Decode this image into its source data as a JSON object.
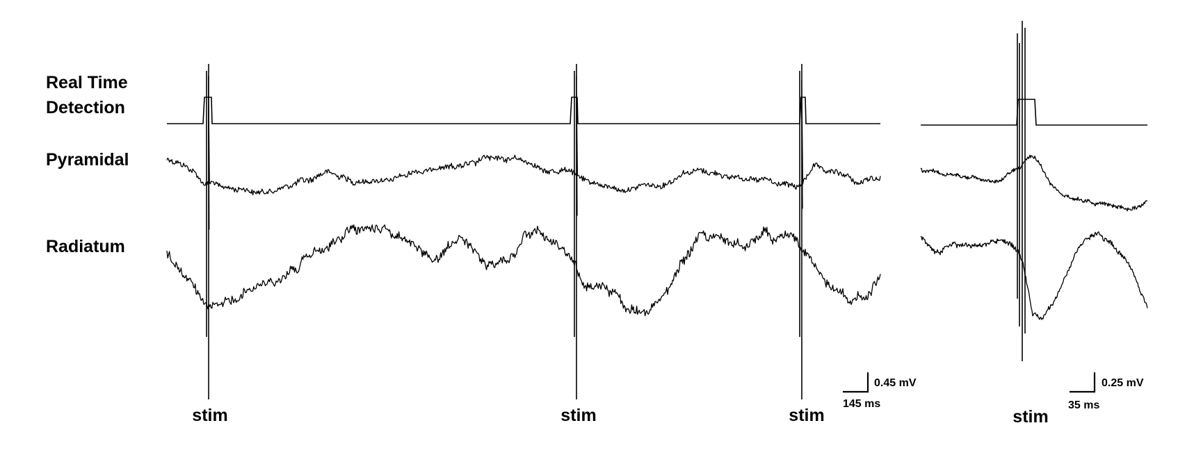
{
  "rows": {
    "detection_line1": "Real Time",
    "detection_line2": "Detection",
    "pyramidal": "Pyramidal",
    "radiatum": "Radiatum"
  },
  "stim_label": "stim",
  "scale_main": {
    "amplitude": "0.45 mV",
    "time": "145 ms"
  },
  "scale_inset": {
    "amplitude": "0.25 mV",
    "time": "35 ms"
  }
}
